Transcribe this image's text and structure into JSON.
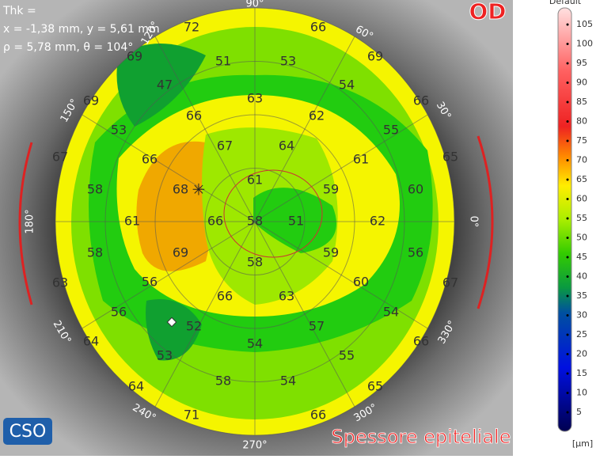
{
  "info": {
    "line1": "Thk =",
    "line2": "x = -1,38 mm, y = 5,61 mm",
    "line3": "ρ = 5,78 mm, θ = 104°"
  },
  "eye": "OD",
  "title": "Spessore epiteliale",
  "logo": "CSO",
  "angles": [
    "90°",
    "120°",
    "60°",
    "150°",
    "30°",
    "180°",
    "0°",
    "210°",
    "330°",
    "240°",
    "300°",
    "270°"
  ],
  "map_values": [
    "72",
    "66",
    "69",
    "69",
    "69",
    "66",
    "67",
    "65",
    "63",
    "67",
    "64",
    "66",
    "64",
    "65",
    "71",
    "66",
    "51",
    "53",
    "47",
    "54",
    "53",
    "55",
    "58",
    "60",
    "58",
    "56",
    "56",
    "54",
    "53",
    "55",
    "58",
    "54",
    "63",
    "66",
    "62",
    "67",
    "64",
    "66",
    "61",
    "68",
    "61",
    "59",
    "61",
    "66",
    "58",
    "51",
    "62",
    "69",
    "59",
    "58",
    "60",
    "56",
    "66",
    "63",
    "52",
    "57",
    "54"
  ],
  "scale": {
    "title": "Default",
    "unit": "[μm]",
    "ticks": [
      "105",
      "100",
      "95",
      "90",
      "85",
      "80",
      "75",
      "70",
      "65",
      "60",
      "55",
      "50",
      "45",
      "40",
      "35",
      "30",
      "25",
      "20",
      "15",
      "10",
      "5"
    ]
  }
}
